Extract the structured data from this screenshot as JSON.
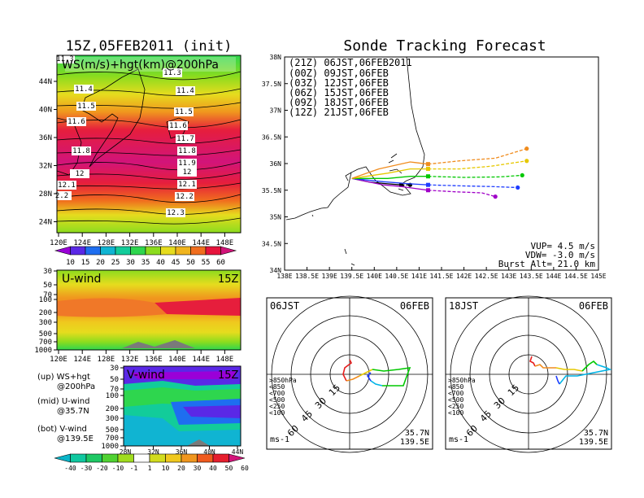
{
  "page": {
    "left_title": "15Z,05FEB2011 (init)",
    "right_title": "Sonde Tracking Forecast"
  },
  "map_panel": {
    "label": "WS(m/s)+hgt(km)@200hPa",
    "x_ticks": [
      "120E",
      "124E",
      "128E",
      "132E",
      "136E",
      "140E",
      "144E",
      "148E"
    ],
    "y_ticks": [
      "44N",
      "40N",
      "36N",
      "32N",
      "28N",
      "24N"
    ],
    "contour_labels": [
      "11.3",
      "11.3",
      "11.4",
      "11.4",
      "11.5",
      "11.5",
      "11.6",
      "11.6",
      "11.7",
      "11.8",
      "11.8",
      "11.9",
      "12",
      "12",
      "12.1",
      "12.1",
      "2.2",
      "12.2",
      "12.3"
    ],
    "colorbar_ticks": [
      "10",
      "15",
      "20",
      "25",
      "30",
      "35",
      "40",
      "45",
      "50",
      "55",
      "60"
    ],
    "colorbar_colors": [
      "#9a00d8",
      "#5a28e6",
      "#1e6ef0",
      "#10b4d2",
      "#12cc9a",
      "#2ed64e",
      "#8cdc1e",
      "#e6dc1e",
      "#f0b41e",
      "#f06e1e",
      "#e6143c",
      "#d2147a"
    ]
  },
  "uwind_panel": {
    "label": "U-wind",
    "time": "15Z",
    "x_ticks": [
      "120E",
      "124E",
      "128E",
      "132E",
      "136E",
      "140E",
      "144E",
      "148E"
    ],
    "y_ticks": [
      "30",
      "50",
      "70",
      "100",
      "200",
      "300",
      "500",
      "700",
      "1000"
    ]
  },
  "vwind_panel": {
    "label": "V-wind",
    "time": "15Z",
    "x_ticks": [
      "28N",
      "32N",
      "36N",
      "40N",
      "44N"
    ],
    "y_ticks": [
      "30",
      "50",
      "70",
      "100",
      "200",
      "300",
      "500",
      "700",
      "1000"
    ]
  },
  "legend_notes": [
    {
      "a": "(up) WS+hgt",
      "b": "@200hPa"
    },
    {
      "a": "(mid) U-wind",
      "b": "@35.7N"
    },
    {
      "a": "(bot) V-wind",
      "b": "@139.5E"
    }
  ],
  "bottom_colorbar": {
    "ticks": [
      "-40",
      "-30",
      "-20",
      "-10",
      "-1",
      "1",
      "10",
      "20",
      "30",
      "40",
      "50",
      "60"
    ],
    "colors": [
      "#0ab4c8",
      "#10c8a0",
      "#1ec864",
      "#50d232",
      "#a0dc1e",
      "#ffffff",
      "#d2dc1e",
      "#f0c81e",
      "#f0961e",
      "#f05a1e",
      "#e61e2d",
      "#d2147a"
    ]
  },
  "tracking": {
    "header": "(21Z) 06JST,06FEB2011",
    "legend": [
      {
        "label": "(00Z) 09JST,06FEB",
        "color": "#a000c8"
      },
      {
        "label": "(03Z) 12JST,06FEB",
        "color": "#1e3cff"
      },
      {
        "label": "(06Z) 15JST,06FEB",
        "color": "#00c800"
      },
      {
        "label": "(09Z) 18JST,06FEB",
        "color": "#e6c800"
      },
      {
        "label": "(12Z) 21JST,06FEB",
        "color": "#f08c1e"
      }
    ],
    "x_ticks": [
      "138E",
      "138.5E",
      "139E",
      "139.5E",
      "140E",
      "140.5E",
      "141E",
      "141.5E",
      "142E",
      "142.5E",
      "143E",
      "143.5E",
      "144E",
      "144.5E",
      "145E"
    ],
    "y_ticks": [
      "38N",
      "37.5N",
      "37N",
      "36.5N",
      "36N",
      "35.5N",
      "35N",
      "34.5N",
      "34N"
    ],
    "info": [
      "VUP= 4.5 m/s",
      "VDW= -3.0 m/s",
      "Burst Alt= 21.0 km"
    ]
  },
  "hodo_left": {
    "time": "06JST",
    "date": "06FEB",
    "lat": "35.7N",
    "lon": "139.5E",
    "unit": "ms-1",
    "ring_labels": [
      "15",
      "30",
      "45",
      "60"
    ],
    "levels": [
      ">850hPa",
      "<850",
      "<700",
      "<500",
      "<250",
      "<100"
    ]
  },
  "hodo_right": {
    "time": "18JST",
    "date": "06FEB",
    "lat": "35.7N",
    "lon": "139.5E",
    "unit": "ms-1",
    "ring_labels": [
      "15",
      "30",
      "45",
      "60"
    ],
    "levels": [
      ">850hPa",
      "<850",
      "<700",
      "<500",
      "<250",
      "<100"
    ]
  },
  "level_colors": [
    "#e61e1e",
    "#f08c1e",
    "#e6c800",
    "#00c800",
    "#00b4e6",
    "#1e3cff"
  ],
  "chart_data": [
    {
      "type": "line",
      "title": "Sonde Tracking Forecast",
      "xlim": [
        138.0,
        145.0
      ],
      "ylim": [
        34.0,
        38.0
      ],
      "series": [
        {
          "name": "(21Z) 06JST,06FEB2011",
          "x": [
            139.5,
            139.9,
            140.3,
            140.6,
            140.8
          ],
          "y": [
            35.72,
            35.65,
            35.62,
            35.6,
            35.6
          ]
        },
        {
          "name": "(00Z) 09JST,06FEB",
          "x": [
            139.5,
            140.2,
            140.6,
            141.2,
            141.8,
            142.4,
            142.7
          ],
          "y": [
            35.72,
            35.6,
            35.57,
            35.5,
            35.47,
            35.45,
            35.38
          ]
        },
        {
          "name": "(03Z) 12JST,06FEB",
          "x": [
            139.5,
            140.2,
            140.8,
            141.2,
            142.0,
            142.6,
            143.2
          ],
          "y": [
            35.72,
            35.66,
            35.62,
            35.6,
            35.58,
            35.57,
            35.55
          ]
        },
        {
          "name": "(06Z) 15JST,06FEB",
          "x": [
            139.5,
            140.3,
            140.8,
            141.2,
            142.0,
            142.8,
            143.3
          ],
          "y": [
            35.72,
            35.72,
            35.76,
            35.76,
            35.74,
            35.75,
            35.78
          ]
        },
        {
          "name": "(09Z) 18JST,06FEB",
          "x": [
            139.5,
            140.3,
            140.8,
            141.2,
            141.9,
            142.6,
            143.4
          ],
          "y": [
            35.72,
            35.82,
            35.9,
            35.9,
            35.9,
            35.95,
            36.05
          ]
        },
        {
          "name": "(12Z) 21JST,06FEB",
          "x": [
            139.5,
            140.1,
            140.8,
            141.2,
            141.9,
            142.7,
            143.4
          ],
          "y": [
            35.72,
            35.9,
            36.03,
            35.99,
            36.05,
            36.1,
            36.28
          ]
        }
      ]
    }
  ]
}
